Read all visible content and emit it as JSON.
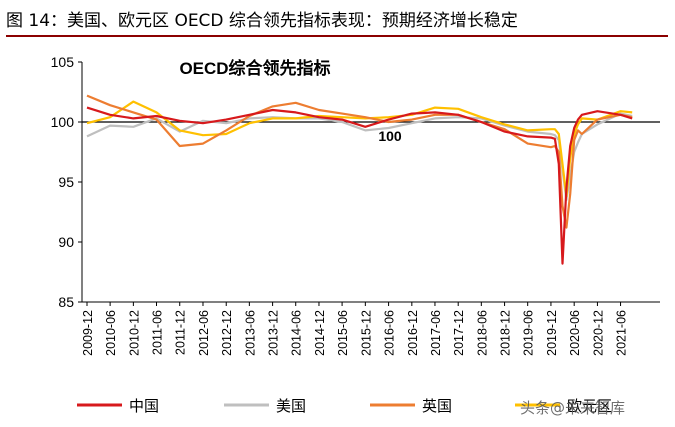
{
  "figure_title": "图 14：美国、欧元区 OECD 综合领先指标表现：预期经济增长稳定",
  "watermark": "头条@未来智库",
  "chart_data": {
    "type": "line",
    "title": "OECD综合领先指标",
    "xlabel": "",
    "ylabel": "",
    "ylim": [
      85,
      105
    ],
    "yticks": [
      85,
      90,
      95,
      100,
      105
    ],
    "grid": false,
    "legend": "bottom",
    "x": [
      "2009-12",
      "2010-06",
      "2010-12",
      "2011-06",
      "2011-12",
      "2012-06",
      "2012-12",
      "2013-06",
      "2013-12",
      "2014-06",
      "2014-12",
      "2015-06",
      "2015-12",
      "2016-06",
      "2016-12",
      "2017-06",
      "2017-12",
      "2018-06",
      "2018-12",
      "2019-06",
      "2019-12",
      "2020-01",
      "2020-02",
      "2020-03",
      "2020-04",
      "2020-05",
      "2020-06",
      "2020-07",
      "2020-08",
      "2020-12",
      "2021-06",
      "2021-09"
    ],
    "xticks": [
      "2009-12",
      "2010-06",
      "2010-12",
      "2011-06",
      "2011-12",
      "2012-06",
      "2012-12",
      "2013-06",
      "2013-12",
      "2014-06",
      "2014-12",
      "2015-06",
      "2015-12",
      "2016-06",
      "2016-12",
      "2017-06",
      "2017-12",
      "2018-06",
      "2018-12",
      "2019-06",
      "2019-12",
      "2020-06",
      "2020-12",
      "2021-06"
    ],
    "reference_line": {
      "value": 100,
      "label": "100"
    },
    "series": [
      {
        "name": "中国",
        "color": "#d7191c",
        "values": [
          101.2,
          100.6,
          100.3,
          100.5,
          100.1,
          99.9,
          100.2,
          100.6,
          101.0,
          100.8,
          100.4,
          100.2,
          99.6,
          100.2,
          100.7,
          100.8,
          100.6,
          100.0,
          99.2,
          98.8,
          98.7,
          98.6,
          96.5,
          88.2,
          94.5,
          98.0,
          99.5,
          100.2,
          100.6,
          100.9,
          100.6,
          100.3
        ]
      },
      {
        "name": "美国",
        "color": "#bfbfbf",
        "values": [
          98.8,
          99.7,
          99.6,
          100.3,
          99.2,
          100.1,
          99.9,
          100.3,
          100.4,
          100.3,
          100.3,
          100.0,
          99.3,
          99.5,
          99.9,
          100.3,
          100.4,
          100.3,
          99.7,
          99.2,
          99.0,
          98.9,
          98.5,
          96.0,
          93.5,
          95.5,
          97.5,
          98.3,
          99.0,
          99.8,
          100.7,
          100.5
        ]
      },
      {
        "name": "英国",
        "color": "#ed7d31",
        "values": [
          102.2,
          101.4,
          100.8,
          100.2,
          98.0,
          98.2,
          99.3,
          100.5,
          101.3,
          101.6,
          101.0,
          100.7,
          100.4,
          100.0,
          100.2,
          100.6,
          100.6,
          100.0,
          99.4,
          98.2,
          97.9,
          98.0,
          97.5,
          93.0,
          91.2,
          94.0,
          98.5,
          99.3,
          99.0,
          100.2,
          100.6,
          100.4
        ]
      },
      {
        "name": "欧元区",
        "color": "#ffc000",
        "values": [
          99.9,
          100.4,
          101.7,
          100.8,
          99.3,
          98.9,
          99.0,
          99.9,
          100.3,
          100.3,
          100.5,
          100.4,
          100.3,
          100.4,
          100.6,
          101.2,
          101.1,
          100.4,
          99.8,
          99.3,
          99.4,
          99.4,
          99.0,
          96.5,
          93.8,
          97.0,
          99.0,
          99.8,
          100.3,
          100.2,
          100.9,
          100.8
        ]
      }
    ]
  }
}
